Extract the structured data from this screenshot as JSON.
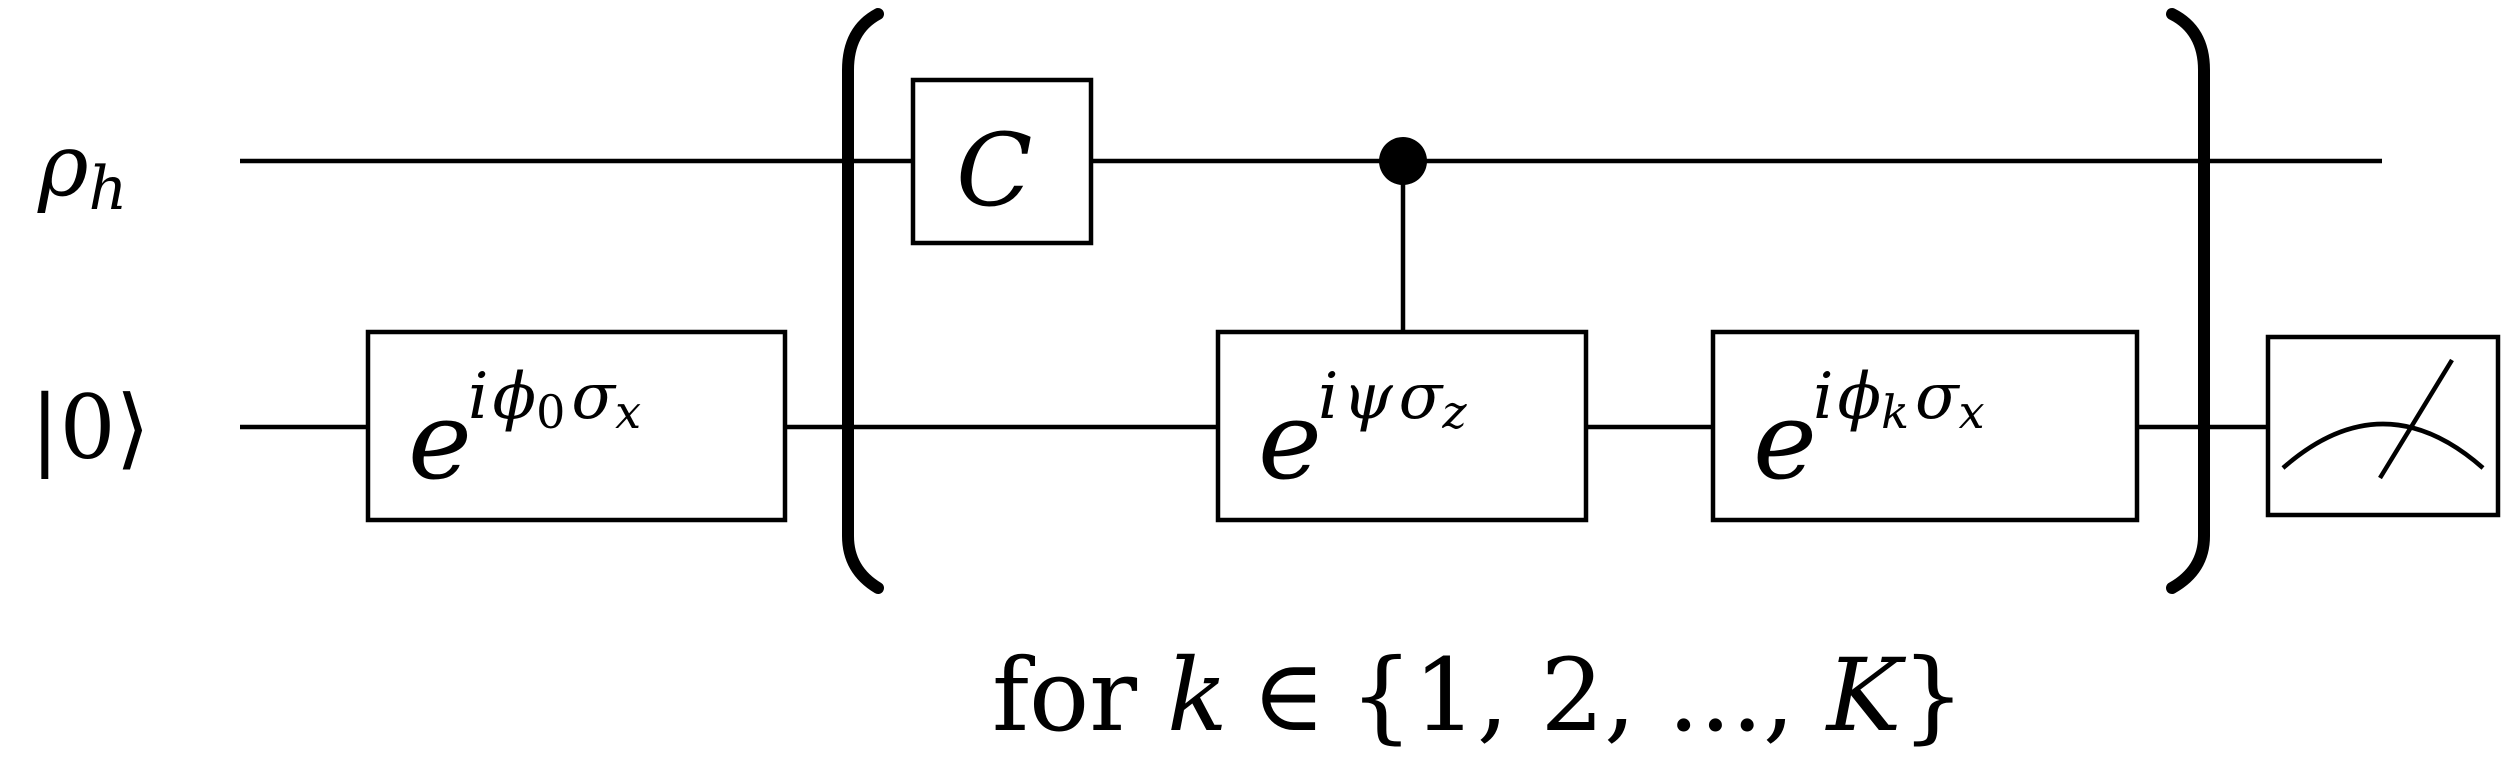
{
  "qubits": {
    "top_label_base": "ρ",
    "top_label_sub": "h",
    "bottom_label": "|0⟩"
  },
  "gates": {
    "initial": {
      "base": "e",
      "exp_i": "i",
      "exp_phi": "ϕ",
      "exp_sub": "0",
      "exp_sigma": "σ",
      "exp_sigma_sub": "x"
    },
    "c_gate": {
      "label": "C"
    },
    "controlled": {
      "base": "e",
      "exp_i": "i",
      "exp_psi": "ψ",
      "exp_sigma": "σ",
      "exp_sigma_sub": "z"
    },
    "phase_k": {
      "base": "e",
      "exp_i": "i",
      "exp_phi": "ϕ",
      "exp_sub": "k",
      "exp_sigma": "σ",
      "exp_sigma_sub": "x"
    }
  },
  "loop": {
    "for_word": "for",
    "var": "k",
    "in_symbol": "∈",
    "set_text": "{1, 2, ..., ",
    "set_last": "K",
    "set_close": "}"
  },
  "icons": {
    "measurement": "measurement-meter-icon",
    "control_dot": "control-dot-icon"
  }
}
